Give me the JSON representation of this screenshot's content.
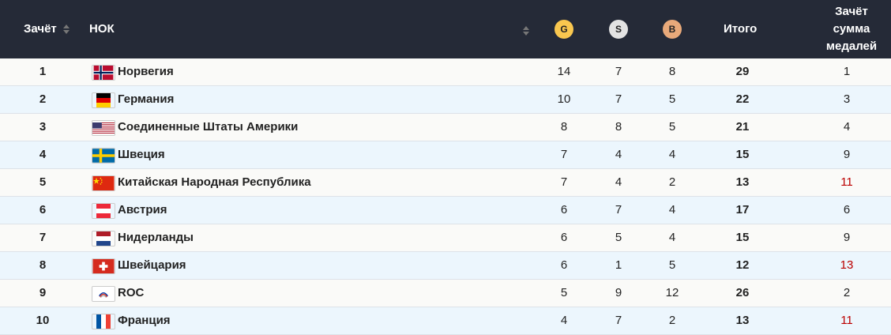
{
  "header": {
    "rank": "Зачёт",
    "noc": "НОК",
    "gold": "G",
    "silver": "S",
    "bronze": "B",
    "total": "Итого",
    "medal_rank": [
      "Зачёт",
      "сумма",
      "медалей"
    ]
  },
  "colors": {
    "header_bg": "#252a37",
    "gold": "#f9c74f",
    "silver": "#e3e3e3",
    "bronze": "#e8a97a"
  },
  "rows": [
    {
      "rank": "1",
      "noc": "Норвегия",
      "flag": "norway",
      "gold": "14",
      "silver": "7",
      "bronze": "8",
      "total": "29",
      "medal_rank": "1"
    },
    {
      "rank": "2",
      "noc": "Германия",
      "flag": "germany",
      "gold": "10",
      "silver": "7",
      "bronze": "5",
      "total": "22",
      "medal_rank": "3"
    },
    {
      "rank": "3",
      "noc": "Соединенные Штаты Америки",
      "flag": "usa",
      "gold": "8",
      "silver": "8",
      "bronze": "5",
      "total": "21",
      "medal_rank": "4"
    },
    {
      "rank": "4",
      "noc": "Швеция",
      "flag": "sweden",
      "gold": "7",
      "silver": "4",
      "bronze": "4",
      "total": "15",
      "medal_rank": "9"
    },
    {
      "rank": "5",
      "noc": "Китайская Народная Республика",
      "flag": "china",
      "gold": "7",
      "silver": "4",
      "bronze": "2",
      "total": "13",
      "medal_rank": "11"
    },
    {
      "rank": "6",
      "noc": "Австрия",
      "flag": "austria",
      "gold": "6",
      "silver": "7",
      "bronze": "4",
      "total": "17",
      "medal_rank": "6"
    },
    {
      "rank": "7",
      "noc": "Нидерланды",
      "flag": "netherlands",
      "gold": "6",
      "silver": "5",
      "bronze": "4",
      "total": "15",
      "medal_rank": "9"
    },
    {
      "rank": "8",
      "noc": "Швейцария",
      "flag": "switzerland",
      "gold": "6",
      "silver": "1",
      "bronze": "5",
      "total": "12",
      "medal_rank": "13"
    },
    {
      "rank": "9",
      "noc": "ROC",
      "flag": "roc",
      "gold": "5",
      "silver": "9",
      "bronze": "12",
      "total": "26",
      "medal_rank": "2"
    },
    {
      "rank": "10",
      "noc": "Франция",
      "flag": "france",
      "gold": "4",
      "silver": "7",
      "bronze": "2",
      "total": "13",
      "medal_rank": "11"
    }
  ]
}
